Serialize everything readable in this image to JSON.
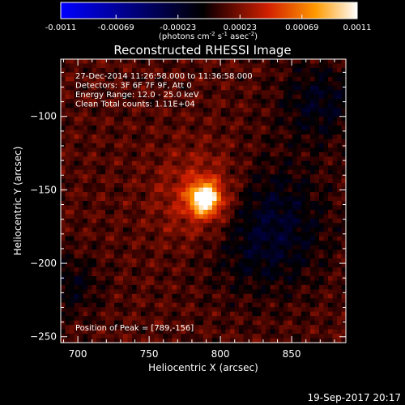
{
  "colorbar": {
    "ticks": [
      "-0.0011",
      "-0.00069",
      "-0.00023",
      "0.00023",
      "0.00069",
      "0.0011"
    ],
    "tick_values": [
      -0.0011,
      -0.00069,
      -0.00023,
      0.00023,
      0.00069,
      0.0011
    ],
    "range": [
      -0.0011,
      0.0011
    ],
    "unit_base": "(photons cm",
    "unit_sup1": "-2",
    "unit_mid": " s",
    "unit_sup2": "-1",
    "unit_mid2": " asec",
    "unit_sup3": "-2",
    "unit_close": ")",
    "colors": [
      "#0000ff",
      "#000000",
      "#d22000",
      "#ff9a00",
      "#ffffff"
    ]
  },
  "chart_data": {
    "type": "heatmap",
    "title": "Reconstructed RHESSI Image",
    "xlabel": "Heliocentric X (arcsec)",
    "ylabel": "Heliocentric Y (arcsec)",
    "xlim": [
      688,
      888
    ],
    "ylim": [
      -254,
      -61
    ],
    "xticks": [
      700,
      750,
      800,
      850
    ],
    "yticks": [
      -100,
      -150,
      -200,
      -250
    ],
    "xtick_labels": [
      "700",
      "750",
      "800",
      "850"
    ],
    "ytick_labels": [
      "−100",
      "−150",
      "−200",
      "−250"
    ],
    "annotations": [
      "27-Dec-2014 11:26:58.000 to 11:36:58.000",
      "Detectors: 3F 6F 7F 9F, Att 0",
      "Energy Range: 12.0 - 25.0 keV",
      "Clean     Total counts: 1.11E+04"
    ],
    "peak_label": "Position of Peak = [789,-156]",
    "peak": [
      789,
      -156
    ],
    "peak_value": 0.0011,
    "negative_region_center": [
      830,
      -175
    ],
    "negative_region_value": -0.00035
  },
  "footer": {
    "timestamp": "19-Sep-2017 20:17"
  }
}
